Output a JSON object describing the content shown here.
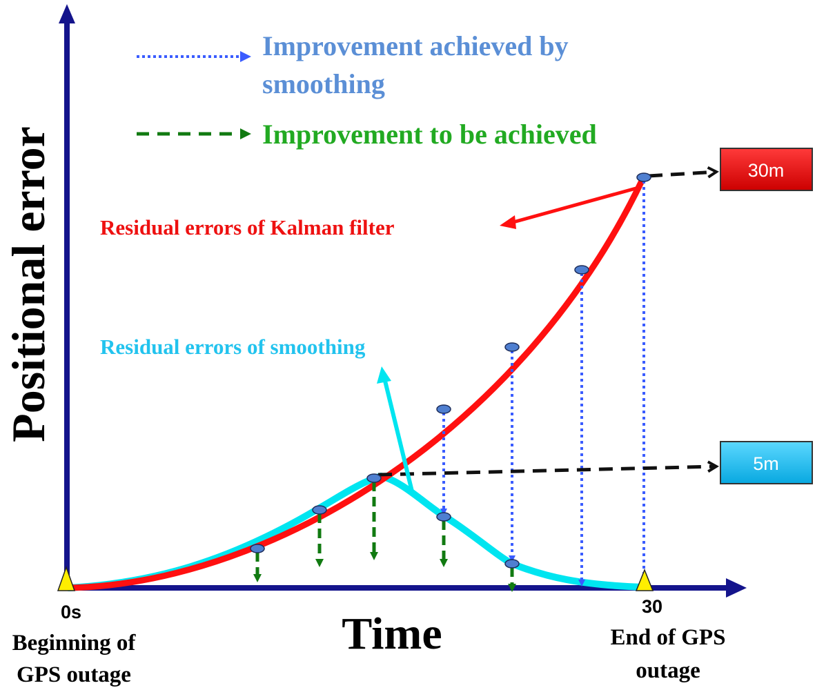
{
  "legend": {
    "smoothing_improvement_line1": "Improvement achieved by",
    "smoothing_improvement_line2": "smoothing",
    "to_be_achieved": "Improvement to be achieved"
  },
  "axes": {
    "y_label": "Positional error",
    "x_label": "Time",
    "x_start": "0s",
    "x_end": "30",
    "start_caption_line1": "Beginning of",
    "start_caption_line2": "GPS outage",
    "end_caption_line1": "End of GPS",
    "end_caption_line2": "outage"
  },
  "labels": {
    "kalman": "Residual errors of Kalman filter",
    "smoothing": "Residual errors of smoothing",
    "kalman_value": "30m",
    "smoothing_value": "5m"
  },
  "colors": {
    "axis": "#14148c",
    "kalman": "#ff1010",
    "smoothing": "#00e5f0",
    "blue_arrow": "#3a5cff",
    "green_arrow": "#117a11",
    "legend_blue_text": "#5b8fd6",
    "legend_green_text": "#22aa22",
    "kalman_label_text": "#ee1111",
    "smoothing_label_text": "#22c3ee",
    "box_red": "#ee1111",
    "box_cyan": "#1ec0f0",
    "point": "#4f7fd0",
    "triangle": "#ffee00"
  }
}
